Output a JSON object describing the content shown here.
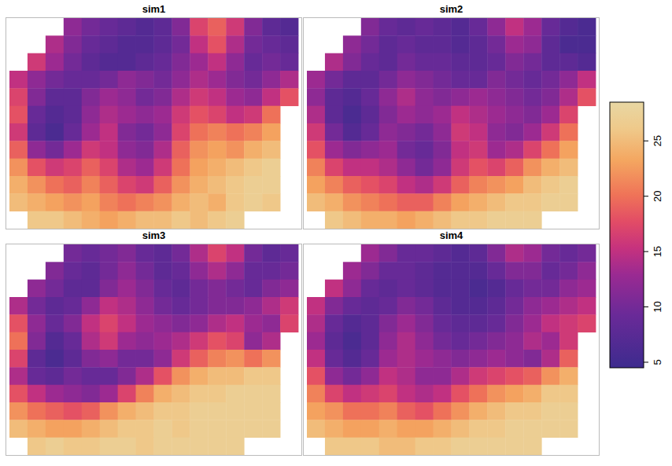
{
  "chart_data": {
    "type": "heatmap",
    "panels": [
      {
        "title": "sim1",
        "cells": [
          [
            null,
            null,
            null,
            12,
            10,
            9,
            8,
            7,
            8,
            11,
            17,
            19,
            16,
            11,
            8,
            7
          ],
          [
            null,
            null,
            14,
            11,
            9,
            8,
            7,
            7,
            8,
            10,
            15,
            18,
            14,
            10,
            9,
            8
          ],
          [
            null,
            16,
            13,
            10,
            8,
            7,
            7,
            8,
            9,
            11,
            13,
            15,
            12,
            9,
            10,
            9
          ],
          [
            15,
            12,
            10,
            9,
            9,
            10,
            12,
            11,
            10,
            12,
            14,
            13,
            11,
            10,
            12,
            14
          ],
          [
            17,
            11,
            8,
            8,
            11,
            13,
            12,
            10,
            11,
            14,
            16,
            15,
            13,
            12,
            15,
            18
          ],
          [
            18,
            9,
            7,
            8,
            12,
            14,
            13,
            12,
            13,
            16,
            18,
            17,
            15,
            16,
            20,
            null
          ],
          [
            16,
            8,
            6,
            9,
            13,
            15,
            11,
            10,
            12,
            17,
            20,
            21,
            20,
            21,
            23,
            null
          ],
          [
            19,
            12,
            10,
            13,
            16,
            15,
            12,
            11,
            14,
            19,
            22,
            23,
            22,
            24,
            25,
            null
          ],
          [
            22,
            18,
            16,
            17,
            19,
            17,
            14,
            13,
            16,
            20,
            23,
            24,
            25,
            26,
            27,
            null
          ],
          [
            24,
            22,
            20,
            19,
            21,
            19,
            17,
            16,
            19,
            22,
            24,
            25,
            26,
            27,
            27,
            null
          ],
          [
            25,
            24,
            23,
            22,
            23,
            21,
            20,
            21,
            22,
            24,
            25,
            24,
            26,
            27,
            26,
            null
          ],
          [
            null,
            26,
            26,
            25,
            24,
            23,
            24,
            25,
            25,
            26,
            25,
            26,
            27,
            null,
            null,
            null
          ]
        ]
      },
      {
        "title": "sim2",
        "cells": [
          [
            null,
            null,
            null,
            11,
            9,
            8,
            9,
            8,
            7,
            9,
            12,
            15,
            13,
            9,
            7,
            6
          ],
          [
            null,
            null,
            12,
            10,
            8,
            9,
            8,
            8,
            7,
            8,
            10,
            13,
            12,
            8,
            6,
            6
          ],
          [
            null,
            14,
            11,
            9,
            8,
            10,
            9,
            9,
            8,
            8,
            9,
            11,
            10,
            8,
            8,
            7
          ],
          [
            13,
            10,
            8,
            8,
            10,
            12,
            11,
            10,
            9,
            9,
            11,
            10,
            9,
            10,
            12,
            15
          ],
          [
            12,
            8,
            7,
            9,
            12,
            14,
            12,
            11,
            12,
            13,
            12,
            11,
            10,
            11,
            14,
            18
          ],
          [
            14,
            8,
            6,
            8,
            11,
            13,
            12,
            13,
            15,
            14,
            13,
            12,
            11,
            13,
            17,
            null
          ],
          [
            16,
            10,
            7,
            9,
            12,
            11,
            10,
            12,
            16,
            15,
            12,
            11,
            13,
            16,
            20,
            null
          ],
          [
            18,
            13,
            11,
            12,
            13,
            10,
            9,
            11,
            15,
            16,
            13,
            14,
            17,
            20,
            23,
            null
          ],
          [
            21,
            17,
            15,
            15,
            14,
            12,
            10,
            12,
            16,
            18,
            17,
            19,
            22,
            24,
            25,
            null
          ],
          [
            23,
            21,
            19,
            18,
            17,
            15,
            14,
            16,
            19,
            21,
            22,
            23,
            25,
            26,
            27,
            null
          ],
          [
            25,
            24,
            22,
            21,
            20,
            19,
            19,
            21,
            23,
            24,
            25,
            26,
            26,
            27,
            27,
            null
          ],
          [
            null,
            26,
            25,
            24,
            24,
            23,
            24,
            25,
            26,
            26,
            27,
            27,
            27,
            null,
            null,
            null
          ]
        ]
      },
      {
        "title": "sim3",
        "cells": [
          [
            null,
            null,
            null,
            10,
            9,
            10,
            11,
            9,
            8,
            10,
            14,
            17,
            15,
            10,
            8,
            9
          ],
          [
            null,
            null,
            11,
            9,
            8,
            10,
            12,
            10,
            8,
            9,
            12,
            14,
            12,
            9,
            9,
            10
          ],
          [
            null,
            12,
            10,
            8,
            8,
            11,
            13,
            11,
            9,
            8,
            10,
            11,
            10,
            9,
            11,
            12
          ],
          [
            14,
            10,
            8,
            9,
            12,
            15,
            14,
            12,
            10,
            9,
            10,
            11,
            11,
            12,
            14,
            16
          ],
          [
            18,
            12,
            9,
            11,
            15,
            17,
            15,
            13,
            12,
            11,
            12,
            14,
            15,
            13,
            12,
            17
          ],
          [
            20,
            11,
            7,
            9,
            14,
            16,
            13,
            12,
            13,
            14,
            16,
            18,
            17,
            12,
            14,
            null
          ],
          [
            17,
            8,
            6,
            8,
            11,
            12,
            10,
            10,
            12,
            16,
            19,
            21,
            22,
            20,
            22,
            null
          ],
          [
            14,
            9,
            8,
            10,
            9,
            9,
            11,
            14,
            18,
            22,
            24,
            25,
            25,
            26,
            26,
            null
          ],
          [
            18,
            15,
            13,
            12,
            11,
            13,
            17,
            21,
            24,
            25,
            26,
            26,
            27,
            27,
            27,
            null
          ],
          [
            22,
            20,
            19,
            18,
            19,
            22,
            24,
            25,
            26,
            26,
            27,
            27,
            27,
            27,
            27,
            null
          ],
          [
            25,
            24,
            23,
            23,
            24,
            25,
            26,
            26,
            27,
            26,
            27,
            27,
            27,
            27,
            27,
            null
          ],
          [
            null,
            26,
            27,
            26,
            26,
            27,
            27,
            26,
            27,
            27,
            27,
            27,
            27,
            null,
            null,
            null
          ]
        ]
      },
      {
        "title": "sim4",
        "cells": [
          [
            null,
            null,
            null,
            13,
            11,
            9,
            9,
            8,
            7,
            8,
            11,
            14,
            13,
            10,
            9,
            10
          ],
          [
            null,
            null,
            13,
            11,
            9,
            9,
            8,
            7,
            7,
            7,
            9,
            11,
            11,
            9,
            10,
            12
          ],
          [
            null,
            15,
            12,
            9,
            8,
            9,
            8,
            7,
            7,
            6,
            7,
            9,
            10,
            10,
            12,
            13
          ],
          [
            15,
            11,
            9,
            8,
            9,
            11,
            10,
            8,
            7,
            7,
            8,
            10,
            12,
            13,
            14,
            15
          ],
          [
            14,
            9,
            7,
            8,
            11,
            13,
            11,
            9,
            8,
            8,
            9,
            11,
            13,
            15,
            16,
            17
          ],
          [
            13,
            8,
            6,
            8,
            12,
            14,
            12,
            10,
            9,
            10,
            11,
            12,
            14,
            13,
            16,
            null
          ],
          [
            15,
            9,
            7,
            9,
            13,
            14,
            13,
            12,
            11,
            12,
            13,
            12,
            11,
            14,
            19,
            null
          ],
          [
            18,
            12,
            10,
            12,
            15,
            14,
            12,
            12,
            14,
            16,
            17,
            18,
            19,
            22,
            24,
            null
          ],
          [
            21,
            17,
            15,
            16,
            17,
            15,
            14,
            15,
            18,
            20,
            22,
            23,
            24,
            26,
            26,
            null
          ],
          [
            23,
            22,
            20,
            20,
            21,
            19,
            18,
            20,
            22,
            24,
            25,
            26,
            26,
            27,
            27,
            null
          ],
          [
            25,
            24,
            23,
            23,
            24,
            23,
            23,
            24,
            25,
            26,
            26,
            27,
            27,
            27,
            27,
            null
          ],
          [
            null,
            26,
            26,
            26,
            25,
            25,
            26,
            26,
            27,
            27,
            27,
            27,
            27,
            null,
            null,
            null
          ]
        ]
      }
    ],
    "colorbar": {
      "range": [
        4.5,
        28.5
      ],
      "ticks": [
        5,
        10,
        15,
        20,
        25
      ]
    }
  }
}
